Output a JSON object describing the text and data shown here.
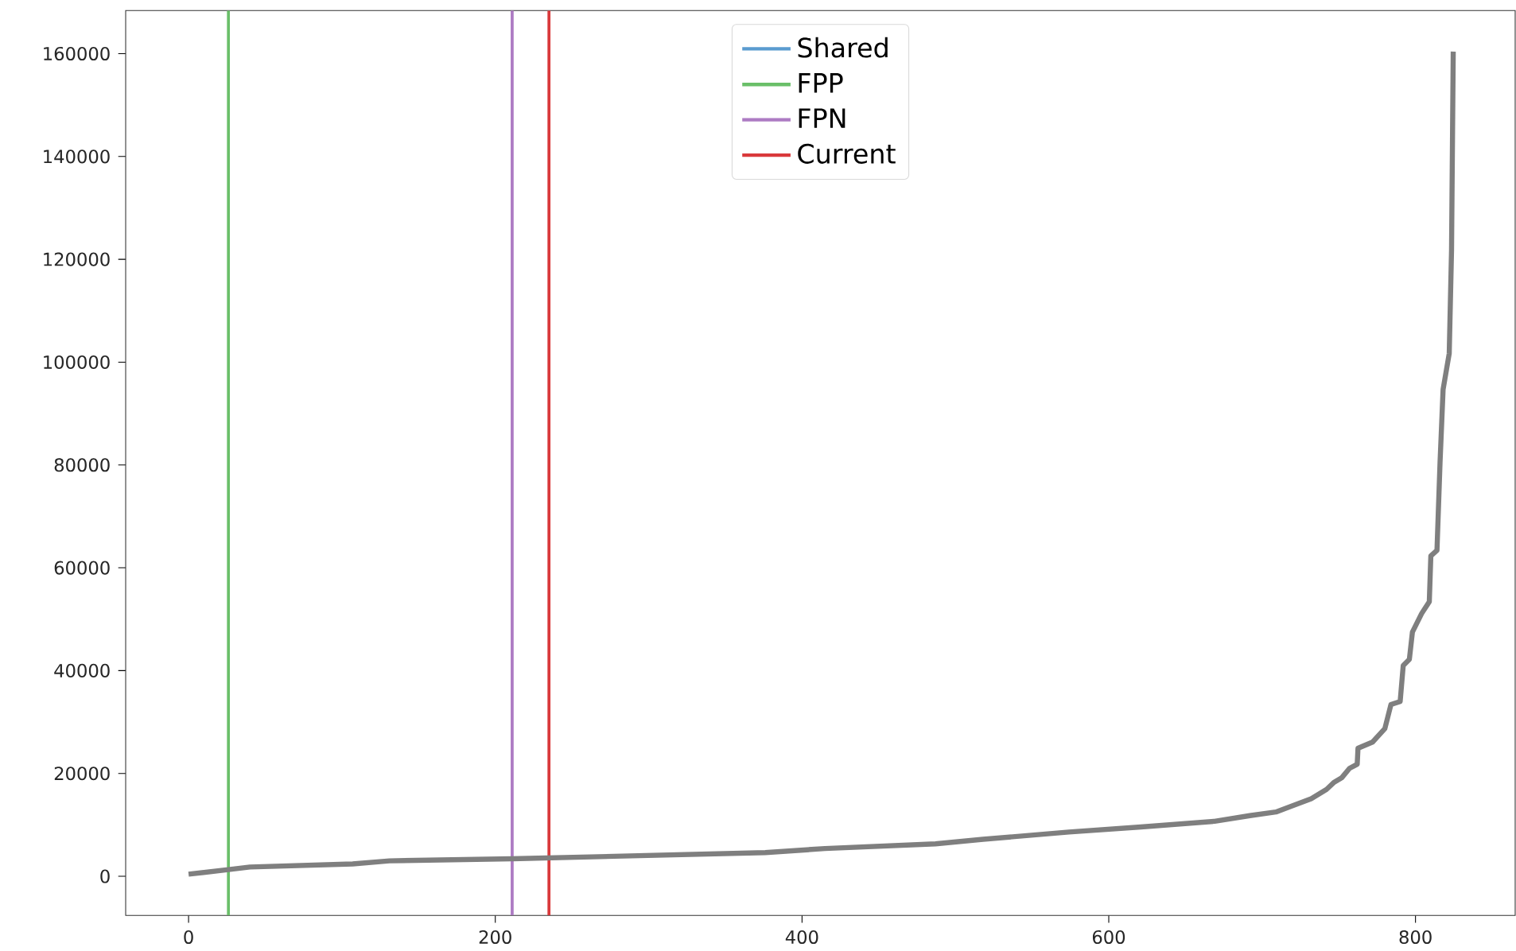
{
  "chart_data": {
    "type": "line",
    "xlim": [
      -41,
      865
    ],
    "ylim": [
      -7600,
      168400
    ],
    "xticks": [
      0,
      200,
      400,
      600,
      800
    ],
    "yticks": [
      0,
      20000,
      40000,
      60000,
      80000,
      100000,
      120000,
      140000,
      160000
    ],
    "legend": "top",
    "grid": false,
    "series": [
      {
        "name": "Shared",
        "color": "#5a9bd0",
        "values": [
          null,
          null
        ]
      },
      {
        "name": "FPP",
        "color": "#6abf69",
        "x": [
          26,
          26
        ],
        "values": [
          -7600,
          168400
        ]
      },
      {
        "name": "FPN",
        "color": "#ad7bc3",
        "x": [
          211,
          211
        ],
        "values": [
          -7600,
          168400
        ]
      },
      {
        "name": "Current",
        "color": "#d9393b",
        "x": [
          235,
          235
        ],
        "values": [
          -7600,
          168400
        ]
      },
      {
        "color": "#7f7f7f",
        "x": [
          0,
          26,
          40,
          107,
          131,
          211,
          376,
          415,
          487,
          518,
          574,
          621,
          669,
          692,
          709,
          732,
          742,
          747,
          752,
          757,
          762,
          762.5,
          772,
          780,
          784,
          790,
          792,
          796,
          798,
          804,
          809,
          810,
          814,
          816,
          818,
          822,
          823.5,
          824.6
        ],
        "values": [
          400,
          1300,
          1800,
          2400,
          3000,
          3400,
          4600,
          5400,
          6300,
          7200,
          8600,
          9600,
          10700,
          11800,
          12500,
          15100,
          16900,
          18300,
          19200,
          21000,
          21800,
          24900,
          26100,
          28700,
          33400,
          34000,
          41000,
          42200,
          47500,
          51100,
          53400,
          62300,
          63400,
          80500,
          94700,
          101700,
          121800,
          160400
        ]
      }
    ]
  }
}
